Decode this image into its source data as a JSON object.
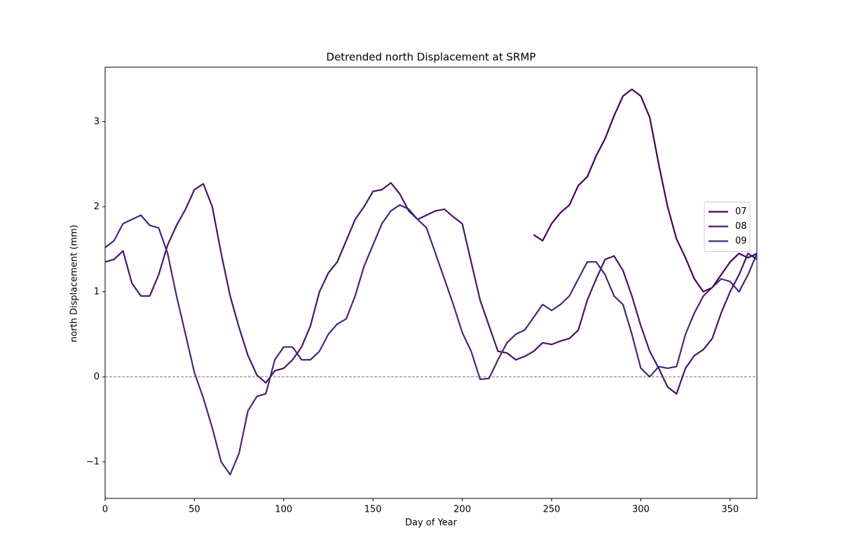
{
  "chart_data": {
    "type": "line",
    "title": "Detrended north Displacement at SRMP",
    "x_label": "Day of Year",
    "y_label": "north Displacement (mm)",
    "x": [
      0,
      5,
      10,
      15,
      20,
      25,
      30,
      35,
      40,
      45,
      50,
      55,
      60,
      65,
      70,
      75,
      80,
      85,
      90,
      95,
      100,
      105,
      110,
      115,
      120,
      125,
      130,
      135,
      140,
      145,
      150,
      155,
      160,
      165,
      170,
      175,
      180,
      185,
      190,
      195,
      200,
      205,
      210,
      215,
      220,
      225,
      230,
      235,
      240,
      245,
      250,
      255,
      260,
      265,
      270,
      275,
      280,
      285,
      290,
      295,
      300,
      305,
      310,
      315,
      320,
      325,
      330,
      335,
      340,
      345,
      350,
      355,
      360,
      365
    ],
    "series": [
      {
        "name": "07",
        "color": "#440154",
        "values": [
          null,
          null,
          null,
          null,
          null,
          null,
          null,
          null,
          null,
          null,
          null,
          null,
          null,
          null,
          null,
          null,
          null,
          null,
          null,
          null,
          null,
          null,
          null,
          null,
          null,
          null,
          null,
          null,
          null,
          null,
          null,
          null,
          null,
          null,
          null,
          null,
          null,
          null,
          null,
          null,
          null,
          null,
          null,
          null,
          null,
          null,
          null,
          null,
          1.67,
          1.6,
          1.8,
          1.93,
          2.02,
          2.25,
          2.35,
          2.6,
          2.8,
          3.07,
          3.3,
          3.38,
          3.3,
          3.05,
          2.5,
          2.0,
          1.62,
          1.4,
          1.15,
          1.0,
          1.05,
          1.2,
          1.35,
          1.45,
          1.4,
          1.45
        ]
      },
      {
        "name": "08",
        "color": "#481467",
        "values": [
          1.35,
          1.38,
          1.48,
          1.1,
          0.95,
          0.95,
          1.2,
          1.55,
          1.78,
          1.97,
          2.2,
          2.27,
          2.0,
          1.45,
          0.95,
          0.58,
          0.25,
          0.02,
          -0.07,
          0.07,
          0.1,
          0.2,
          0.35,
          0.6,
          1.0,
          1.22,
          1.35,
          1.6,
          1.85,
          2.0,
          2.18,
          2.2,
          2.28,
          2.15,
          1.95,
          1.85,
          1.9,
          1.95,
          1.97,
          1.88,
          1.8,
          1.35,
          0.9,
          0.6,
          0.3,
          0.28,
          0.2,
          0.24,
          0.3,
          0.4,
          0.38,
          0.42,
          0.45,
          0.55,
          0.9,
          1.15,
          1.38,
          1.42,
          1.25,
          0.95,
          0.6,
          0.3,
          0.1,
          -0.12,
          -0.2,
          0.1,
          0.25,
          0.32,
          0.45,
          0.75,
          1.0,
          1.2,
          1.45,
          1.38
        ]
      },
      {
        "name": "09",
        "color": "#482677",
        "values": [
          1.52,
          1.6,
          1.8,
          1.85,
          1.9,
          1.78,
          1.75,
          1.45,
          0.95,
          0.5,
          0.05,
          -0.25,
          -0.6,
          -1.0,
          -1.15,
          -0.9,
          -0.4,
          -0.23,
          -0.2,
          0.2,
          0.35,
          0.35,
          0.2,
          0.2,
          0.3,
          0.5,
          0.62,
          0.68,
          0.95,
          1.3,
          1.55,
          1.8,
          1.95,
          2.02,
          1.97,
          1.85,
          1.75,
          1.45,
          1.15,
          0.85,
          0.52,
          0.3,
          -0.03,
          -0.02,
          0.2,
          0.4,
          0.5,
          0.55,
          0.7,
          0.85,
          0.78,
          0.85,
          0.95,
          1.15,
          1.35,
          1.35,
          1.2,
          0.95,
          0.85,
          0.5,
          0.1,
          0.0,
          0.12,
          0.1,
          0.12,
          0.5,
          0.75,
          0.95,
          1.05,
          1.15,
          1.12,
          1.0,
          1.2,
          1.45
        ]
      }
    ],
    "xlim": [
      0,
      365
    ],
    "xticks": [
      0,
      50,
      100,
      150,
      200,
      250,
      300,
      350
    ],
    "ylim": [
      -1.43,
      3.64
    ],
    "yticks": [
      {
        "value": -1,
        "label": "−1"
      },
      0,
      1,
      2,
      3
    ],
    "reference_line": 0,
    "legend": "center right"
  }
}
